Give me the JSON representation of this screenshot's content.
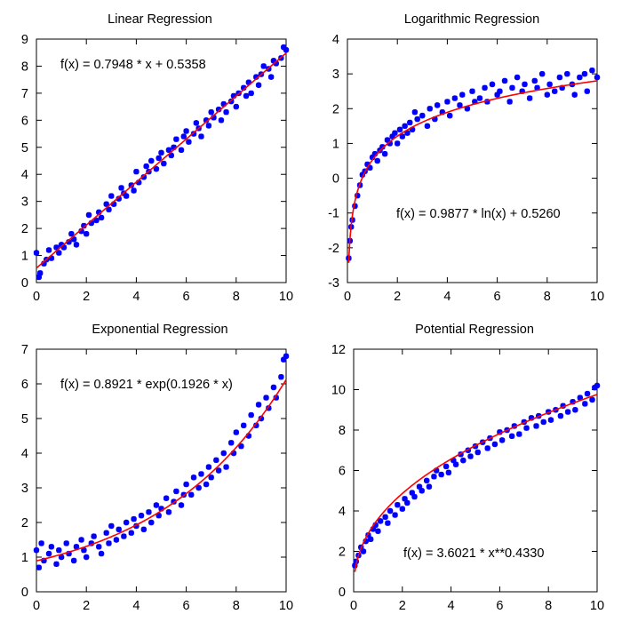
{
  "chart_data": [
    {
      "type": "scatter",
      "title": "Linear Regression",
      "xlabel": "",
      "ylabel": "",
      "xlim": [
        0,
        10
      ],
      "ylim": [
        0,
        9
      ],
      "xticks": [
        0,
        2,
        4,
        6,
        8,
        10
      ],
      "yticks": [
        0,
        1,
        2,
        3,
        4,
        5,
        6,
        7,
        8,
        9
      ],
      "formula": "f(x) = 0.7948 * x + 0.5358",
      "fit": {
        "model": "linear",
        "a": 0.7948,
        "b": 0.5358
      },
      "grid": false,
      "points": [
        [
          0,
          1.1
        ],
        [
          0.1,
          0.2
        ],
        [
          0.15,
          0.35
        ],
        [
          0.3,
          0.7
        ],
        [
          0.4,
          0.85
        ],
        [
          0.5,
          1.2
        ],
        [
          0.6,
          0.9
        ],
        [
          0.8,
          1.3
        ],
        [
          0.9,
          1.1
        ],
        [
          1.0,
          1.4
        ],
        [
          1.1,
          1.3
        ],
        [
          1.3,
          1.5
        ],
        [
          1.4,
          1.8
        ],
        [
          1.5,
          1.6
        ],
        [
          1.6,
          1.4
        ],
        [
          1.8,
          1.9
        ],
        [
          1.9,
          2.1
        ],
        [
          2.0,
          1.8
        ],
        [
          2.1,
          2.5
        ],
        [
          2.2,
          2.2
        ],
        [
          2.4,
          2.3
        ],
        [
          2.5,
          2.6
        ],
        [
          2.6,
          2.4
        ],
        [
          2.8,
          2.9
        ],
        [
          2.9,
          2.7
        ],
        [
          3.0,
          3.2
        ],
        [
          3.1,
          2.9
        ],
        [
          3.3,
          3.1
        ],
        [
          3.4,
          3.5
        ],
        [
          3.5,
          3.3
        ],
        [
          3.6,
          3.2
        ],
        [
          3.8,
          3.6
        ],
        [
          3.9,
          3.4
        ],
        [
          4.0,
          4.1
        ],
        [
          4.1,
          3.7
        ],
        [
          4.3,
          3.9
        ],
        [
          4.4,
          4.3
        ],
        [
          4.5,
          4.1
        ],
        [
          4.6,
          4.5
        ],
        [
          4.8,
          4.2
        ],
        [
          4.9,
          4.6
        ],
        [
          5.0,
          4.8
        ],
        [
          5.1,
          4.4
        ],
        [
          5.3,
          4.9
        ],
        [
          5.4,
          4.7
        ],
        [
          5.5,
          5.0
        ],
        [
          5.6,
          5.3
        ],
        [
          5.8,
          4.9
        ],
        [
          5.9,
          5.4
        ],
        [
          6.0,
          5.6
        ],
        [
          6.1,
          5.2
        ],
        [
          6.3,
          5.5
        ],
        [
          6.4,
          5.9
        ],
        [
          6.5,
          5.7
        ],
        [
          6.6,
          5.4
        ],
        [
          6.8,
          6.0
        ],
        [
          6.9,
          5.8
        ],
        [
          7.0,
          6.3
        ],
        [
          7.1,
          6.1
        ],
        [
          7.3,
          6.4
        ],
        [
          7.4,
          6.0
        ],
        [
          7.5,
          6.6
        ],
        [
          7.6,
          6.3
        ],
        [
          7.8,
          6.7
        ],
        [
          7.9,
          6.9
        ],
        [
          8.0,
          6.5
        ],
        [
          8.1,
          7.0
        ],
        [
          8.3,
          7.2
        ],
        [
          8.4,
          6.9
        ],
        [
          8.5,
          7.4
        ],
        [
          8.6,
          7.0
        ],
        [
          8.8,
          7.6
        ],
        [
          8.9,
          7.3
        ],
        [
          9.0,
          7.7
        ],
        [
          9.1,
          8.0
        ],
        [
          9.3,
          7.9
        ],
        [
          9.4,
          7.6
        ],
        [
          9.5,
          8.2
        ],
        [
          9.6,
          8.1
        ],
        [
          9.8,
          8.3
        ],
        [
          9.9,
          8.7
        ],
        [
          10.0,
          8.6
        ]
      ]
    },
    {
      "type": "scatter",
      "title": "Logarithmic Regression",
      "xlabel": "",
      "ylabel": "",
      "xlim": [
        0,
        10
      ],
      "ylim": [
        -3,
        4
      ],
      "xticks": [
        0,
        2,
        4,
        6,
        8,
        10
      ],
      "yticks": [
        -3,
        -2,
        -1,
        0,
        1,
        2,
        3,
        4
      ],
      "formula": "f(x) = 0.9877 * ln(x) + 0.5260",
      "fit": {
        "model": "log",
        "a": 0.9877,
        "b": 0.526
      },
      "grid": false,
      "points": [
        [
          0.05,
          -2.3
        ],
        [
          0.1,
          -1.8
        ],
        [
          0.15,
          -1.4
        ],
        [
          0.2,
          -1.2
        ],
        [
          0.3,
          -0.8
        ],
        [
          0.4,
          -0.5
        ],
        [
          0.5,
          -0.2
        ],
        [
          0.6,
          0.1
        ],
        [
          0.7,
          0.2
        ],
        [
          0.8,
          0.4
        ],
        [
          0.9,
          0.3
        ],
        [
          1.0,
          0.6
        ],
        [
          1.1,
          0.7
        ],
        [
          1.2,
          0.5
        ],
        [
          1.3,
          0.8
        ],
        [
          1.4,
          0.9
        ],
        [
          1.5,
          0.7
        ],
        [
          1.6,
          1.1
        ],
        [
          1.7,
          1.0
        ],
        [
          1.8,
          1.2
        ],
        [
          1.9,
          1.3
        ],
        [
          2.0,
          1.0
        ],
        [
          2.1,
          1.4
        ],
        [
          2.2,
          1.2
        ],
        [
          2.3,
          1.5
        ],
        [
          2.4,
          1.3
        ],
        [
          2.5,
          1.6
        ],
        [
          2.6,
          1.4
        ],
        [
          2.7,
          1.9
        ],
        [
          2.8,
          1.7
        ],
        [
          3.0,
          1.8
        ],
        [
          3.2,
          1.5
        ],
        [
          3.3,
          2.0
        ],
        [
          3.5,
          1.7
        ],
        [
          3.6,
          2.1
        ],
        [
          3.8,
          1.9
        ],
        [
          4.0,
          2.2
        ],
        [
          4.1,
          1.8
        ],
        [
          4.3,
          2.3
        ],
        [
          4.5,
          2.1
        ],
        [
          4.6,
          2.4
        ],
        [
          4.8,
          2.0
        ],
        [
          5.0,
          2.5
        ],
        [
          5.1,
          2.2
        ],
        [
          5.3,
          2.3
        ],
        [
          5.5,
          2.6
        ],
        [
          5.6,
          2.2
        ],
        [
          5.8,
          2.7
        ],
        [
          6.0,
          2.4
        ],
        [
          6.1,
          2.5
        ],
        [
          6.3,
          2.8
        ],
        [
          6.5,
          2.2
        ],
        [
          6.6,
          2.6
        ],
        [
          6.8,
          2.9
        ],
        [
          7.0,
          2.5
        ],
        [
          7.1,
          2.7
        ],
        [
          7.3,
          2.3
        ],
        [
          7.5,
          2.8
        ],
        [
          7.6,
          2.6
        ],
        [
          7.8,
          3.0
        ],
        [
          8.0,
          2.4
        ],
        [
          8.1,
          2.7
        ],
        [
          8.3,
          2.5
        ],
        [
          8.5,
          2.9
        ],
        [
          8.6,
          2.6
        ],
        [
          8.8,
          3.0
        ],
        [
          9.0,
          2.7
        ],
        [
          9.1,
          2.4
        ],
        [
          9.3,
          2.9
        ],
        [
          9.5,
          3.0
        ],
        [
          9.6,
          2.5
        ],
        [
          9.8,
          3.1
        ],
        [
          10.0,
          2.9
        ]
      ]
    },
    {
      "type": "scatter",
      "title": "Exponential Regression",
      "xlabel": "",
      "ylabel": "",
      "xlim": [
        0,
        10
      ],
      "ylim": [
        0,
        7
      ],
      "xticks": [
        0,
        2,
        4,
        6,
        8,
        10
      ],
      "yticks": [
        0,
        1,
        2,
        3,
        4,
        5,
        6,
        7
      ],
      "formula": "f(x) = 0.8921 * exp(0.1926 * x)",
      "fit": {
        "model": "exp",
        "a": 0.8921,
        "b": 0.1926
      },
      "grid": false,
      "points": [
        [
          0,
          1.2
        ],
        [
          0.1,
          0.7
        ],
        [
          0.2,
          1.4
        ],
        [
          0.3,
          0.9
        ],
        [
          0.5,
          1.1
        ],
        [
          0.6,
          1.3
        ],
        [
          0.8,
          0.8
        ],
        [
          0.9,
          1.2
        ],
        [
          1.0,
          1.0
        ],
        [
          1.2,
          1.4
        ],
        [
          1.3,
          1.1
        ],
        [
          1.5,
          0.9
        ],
        [
          1.6,
          1.3
        ],
        [
          1.8,
          1.5
        ],
        [
          1.9,
          1.2
        ],
        [
          2.0,
          1.0
        ],
        [
          2.2,
          1.4
        ],
        [
          2.3,
          1.6
        ],
        [
          2.5,
          1.3
        ],
        [
          2.6,
          1.1
        ],
        [
          2.8,
          1.7
        ],
        [
          2.9,
          1.4
        ],
        [
          3.0,
          1.9
        ],
        [
          3.2,
          1.5
        ],
        [
          3.3,
          1.8
        ],
        [
          3.5,
          1.6
        ],
        [
          3.6,
          2.0
        ],
        [
          3.8,
          1.7
        ],
        [
          3.9,
          2.1
        ],
        [
          4.0,
          1.9
        ],
        [
          4.2,
          2.2
        ],
        [
          4.3,
          1.8
        ],
        [
          4.5,
          2.3
        ],
        [
          4.6,
          2.0
        ],
        [
          4.8,
          2.5
        ],
        [
          4.9,
          2.2
        ],
        [
          5.0,
          2.4
        ],
        [
          5.2,
          2.7
        ],
        [
          5.3,
          2.3
        ],
        [
          5.5,
          2.6
        ],
        [
          5.6,
          2.9
        ],
        [
          5.8,
          2.5
        ],
        [
          5.9,
          2.8
        ],
        [
          6.0,
          3.1
        ],
        [
          6.2,
          2.8
        ],
        [
          6.3,
          3.3
        ],
        [
          6.5,
          3.0
        ],
        [
          6.6,
          3.4
        ],
        [
          6.8,
          3.1
        ],
        [
          6.9,
          3.6
        ],
        [
          7.0,
          3.3
        ],
        [
          7.2,
          3.8
        ],
        [
          7.3,
          3.5
        ],
        [
          7.5,
          4.0
        ],
        [
          7.6,
          3.6
        ],
        [
          7.8,
          4.3
        ],
        [
          7.9,
          4.0
        ],
        [
          8.0,
          4.6
        ],
        [
          8.2,
          4.2
        ],
        [
          8.3,
          4.8
        ],
        [
          8.5,
          4.5
        ],
        [
          8.6,
          5.1
        ],
        [
          8.8,
          4.8
        ],
        [
          8.9,
          5.4
        ],
        [
          9.0,
          5.0
        ],
        [
          9.2,
          5.6
        ],
        [
          9.3,
          5.3
        ],
        [
          9.5,
          5.9
        ],
        [
          9.6,
          5.6
        ],
        [
          9.8,
          6.2
        ],
        [
          9.9,
          6.7
        ],
        [
          10.0,
          6.8
        ]
      ]
    },
    {
      "type": "scatter",
      "title": "Potential Regression",
      "xlabel": "",
      "ylabel": "",
      "xlim": [
        0,
        10
      ],
      "ylim": [
        0,
        12
      ],
      "xticks": [
        0,
        2,
        4,
        6,
        8,
        10
      ],
      "yticks": [
        0,
        2,
        4,
        6,
        8,
        10,
        12
      ],
      "formula": "f(x) = 3.6021 * x**0.4330",
      "fit": {
        "model": "power",
        "a": 3.6021,
        "b": 0.433
      },
      "grid": false,
      "points": [
        [
          0.05,
          1.3
        ],
        [
          0.1,
          1.5
        ],
        [
          0.2,
          1.8
        ],
        [
          0.3,
          2.2
        ],
        [
          0.4,
          2.0
        ],
        [
          0.5,
          2.5
        ],
        [
          0.6,
          2.8
        ],
        [
          0.7,
          2.6
        ],
        [
          0.8,
          3.1
        ],
        [
          0.9,
          3.3
        ],
        [
          1.0,
          3.0
        ],
        [
          1.1,
          3.5
        ],
        [
          1.3,
          3.7
        ],
        [
          1.4,
          3.4
        ],
        [
          1.5,
          4.0
        ],
        [
          1.7,
          3.8
        ],
        [
          1.8,
          4.3
        ],
        [
          2.0,
          4.1
        ],
        [
          2.1,
          4.6
        ],
        [
          2.2,
          4.4
        ],
        [
          2.4,
          4.9
        ],
        [
          2.5,
          4.7
        ],
        [
          2.7,
          5.2
        ],
        [
          2.8,
          5.0
        ],
        [
          3.0,
          5.5
        ],
        [
          3.1,
          5.2
        ],
        [
          3.3,
          5.7
        ],
        [
          3.4,
          6.0
        ],
        [
          3.6,
          5.8
        ],
        [
          3.8,
          6.2
        ],
        [
          3.9,
          5.9
        ],
        [
          4.1,
          6.5
        ],
        [
          4.2,
          6.3
        ],
        [
          4.4,
          6.8
        ],
        [
          4.5,
          6.5
        ],
        [
          4.7,
          7.0
        ],
        [
          4.8,
          6.7
        ],
        [
          5.0,
          7.2
        ],
        [
          5.1,
          6.9
        ],
        [
          5.3,
          7.4
        ],
        [
          5.5,
          7.1
        ],
        [
          5.6,
          7.6
        ],
        [
          5.8,
          7.3
        ],
        [
          6.0,
          7.9
        ],
        [
          6.1,
          7.5
        ],
        [
          6.3,
          8.0
        ],
        [
          6.5,
          7.7
        ],
        [
          6.6,
          8.2
        ],
        [
          6.8,
          7.8
        ],
        [
          7.0,
          8.4
        ],
        [
          7.1,
          8.1
        ],
        [
          7.3,
          8.6
        ],
        [
          7.5,
          8.2
        ],
        [
          7.6,
          8.7
        ],
        [
          7.8,
          8.4
        ],
        [
          8.0,
          8.9
        ],
        [
          8.1,
          8.5
        ],
        [
          8.3,
          9.0
        ],
        [
          8.5,
          8.7
        ],
        [
          8.6,
          9.2
        ],
        [
          8.8,
          8.9
        ],
        [
          9.0,
          9.4
        ],
        [
          9.1,
          9.0
        ],
        [
          9.3,
          9.6
        ],
        [
          9.5,
          9.3
        ],
        [
          9.6,
          9.8
        ],
        [
          9.8,
          9.5
        ],
        [
          9.9,
          10.1
        ],
        [
          10.0,
          10.2
        ]
      ]
    }
  ],
  "colors": {
    "points": "#0000ff",
    "fit_line": "#ff0000",
    "axes": "#000000"
  }
}
